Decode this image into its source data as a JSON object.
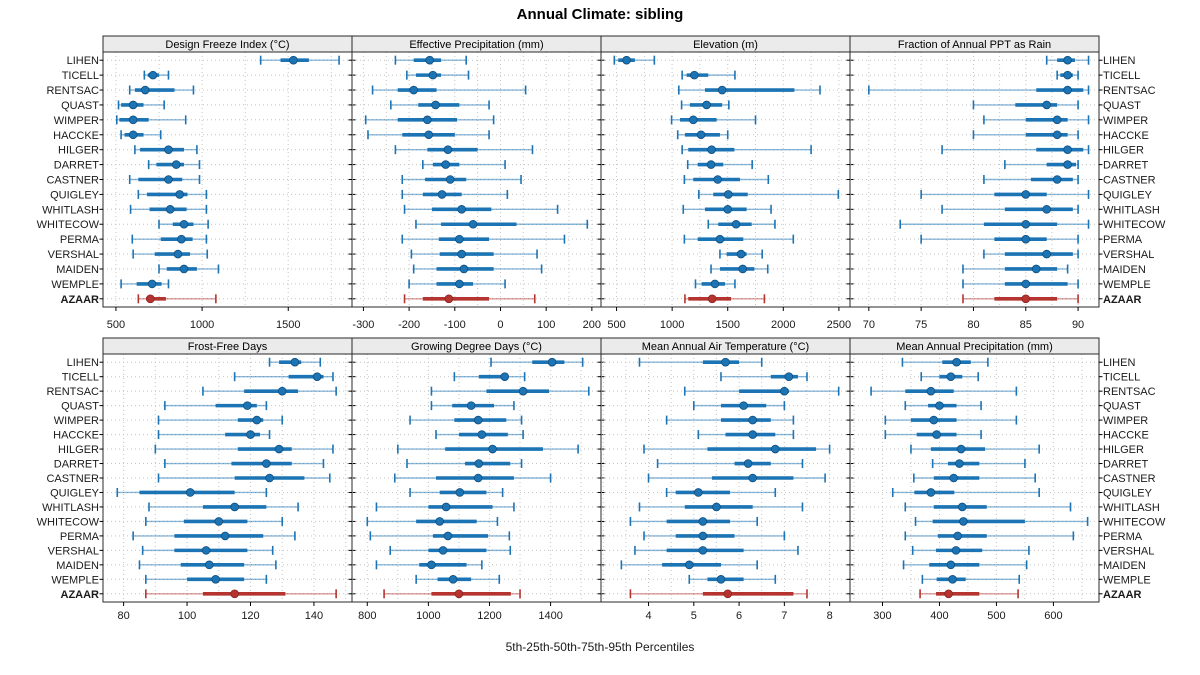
{
  "title": "Annual Climate: sibling",
  "caption": "5th-25th-50th-75th-95th Percentiles",
  "stations": [
    "LIHEN",
    "TICELL",
    "RENTSAC",
    "QUAST",
    "WIMPER",
    "HACCKE",
    "HILGER",
    "DARRET",
    "CASTNER",
    "QUIGLEY",
    "WHITLASH",
    "WHITECOW",
    "PERMA",
    "VERSHAL",
    "MAIDEN",
    "WEMPLE",
    "AZAAR"
  ],
  "highlight_station": "AZAAR",
  "colors": {
    "series": "#1c74b4",
    "series_dot_edge": "#0f4d7d",
    "highlight": "#b5342f",
    "highlight_dot_edge": "#8c2420",
    "strip_bg": "#ebebeb",
    "panel_border": "#2a2a2a",
    "grid": "#c4c4c4",
    "text": "#1a1a1a"
  },
  "chart_data": {
    "type": "dotplot-trellis",
    "percentiles": [
      "5th",
      "25th",
      "50th",
      "75th",
      "95th"
    ],
    "layout": {
      "rows": 2,
      "cols": 4
    },
    "panels": [
      {
        "title": "Design Freeze Index (°C)",
        "ticks": [
          500,
          1000,
          1500
        ],
        "xlim": [
          425,
          1870
        ],
        "values": [
          [
            1340,
            1455,
            1530,
            1620,
            1795
          ],
          [
            665,
            685,
            715,
            750,
            805
          ],
          [
            580,
            610,
            670,
            840,
            950
          ],
          [
            515,
            530,
            600,
            660,
            780
          ],
          [
            505,
            520,
            600,
            690,
            905
          ],
          [
            530,
            550,
            600,
            660,
            760
          ],
          [
            610,
            640,
            805,
            895,
            970
          ],
          [
            690,
            735,
            850,
            895,
            985
          ],
          [
            580,
            630,
            805,
            885,
            985
          ],
          [
            630,
            680,
            870,
            915,
            1025
          ],
          [
            585,
            695,
            815,
            910,
            1025
          ],
          [
            750,
            830,
            895,
            950,
            1035
          ],
          [
            595,
            760,
            880,
            945,
            1025
          ],
          [
            600,
            725,
            860,
            930,
            1030
          ],
          [
            750,
            795,
            895,
            970,
            1095
          ],
          [
            530,
            620,
            710,
            765,
            805
          ],
          [
            630,
            675,
            700,
            790,
            1080
          ]
        ]
      },
      {
        "title": "Effective Precipitation (mm)",
        "ticks": [
          -300,
          -200,
          -100,
          0,
          100,
          200
        ],
        "xlim": [
          -325,
          220
        ],
        "values": [
          [
            -230,
            -190,
            -155,
            -130,
            -75
          ],
          [
            -205,
            -185,
            -148,
            -130,
            -70
          ],
          [
            -280,
            -225,
            -190,
            -140,
            55
          ],
          [
            -240,
            -180,
            -142,
            -90,
            -25
          ],
          [
            -295,
            -225,
            -160,
            -95,
            -15
          ],
          [
            -290,
            -215,
            -157,
            -100,
            -25
          ],
          [
            -230,
            -160,
            -115,
            -50,
            70
          ],
          [
            -170,
            -148,
            -120,
            -90,
            10
          ],
          [
            -215,
            -165,
            -110,
            -75,
            45
          ],
          [
            -215,
            -170,
            -128,
            -85,
            15
          ],
          [
            -210,
            -150,
            -85,
            -20,
            125
          ],
          [
            -185,
            -130,
            -60,
            35,
            190
          ],
          [
            -215,
            -135,
            -90,
            -25,
            140
          ],
          [
            -195,
            -133,
            -85,
            -15,
            80
          ],
          [
            -190,
            -140,
            -80,
            -15,
            90
          ],
          [
            -200,
            -140,
            -90,
            -60,
            10
          ],
          [
            -210,
            -170,
            -113,
            -25,
            75
          ]
        ]
      },
      {
        "title": "Elevation (m)",
        "ticks": [
          500,
          1000,
          1500,
          2000,
          2500
        ],
        "xlim": [
          360,
          2600
        ],
        "values": [
          [
            480,
            515,
            590,
            665,
            840
          ],
          [
            1090,
            1130,
            1200,
            1325,
            1565
          ],
          [
            1060,
            1295,
            1450,
            2100,
            2330
          ],
          [
            1085,
            1160,
            1310,
            1450,
            1510
          ],
          [
            995,
            1070,
            1190,
            1400,
            1750
          ],
          [
            1050,
            1115,
            1260,
            1430,
            1500
          ],
          [
            1090,
            1145,
            1355,
            1560,
            2250
          ],
          [
            1140,
            1230,
            1350,
            1460,
            1720
          ],
          [
            1110,
            1190,
            1410,
            1610,
            1865
          ],
          [
            1240,
            1370,
            1505,
            1680,
            2495
          ],
          [
            1100,
            1295,
            1500,
            1670,
            1890
          ],
          [
            1325,
            1415,
            1575,
            1715,
            1925
          ],
          [
            1110,
            1230,
            1430,
            1640,
            2090
          ],
          [
            1430,
            1490,
            1620,
            1670,
            1810
          ],
          [
            1350,
            1430,
            1635,
            1740,
            1860
          ],
          [
            1210,
            1265,
            1385,
            1475,
            1565
          ],
          [
            1115,
            1145,
            1360,
            1530,
            1830
          ]
        ]
      },
      {
        "title": "Fraction of Annual PPT as Rain",
        "ticks": [
          70,
          75,
          80,
          85,
          90
        ],
        "xlim": [
          68.2,
          92
        ],
        "values": [
          [
            87,
            88,
            89,
            89.7,
            91
          ],
          [
            88,
            88.3,
            89,
            89.5,
            90
          ],
          [
            70,
            86,
            89,
            90.5,
            91
          ],
          [
            80,
            84,
            87,
            88,
            90
          ],
          [
            81,
            85,
            88,
            89,
            91
          ],
          [
            80,
            85,
            88,
            89,
            90
          ],
          [
            77,
            86,
            89,
            90.5,
            91
          ],
          [
            83,
            87,
            89,
            89.8,
            90
          ],
          [
            81,
            85.5,
            88,
            89.5,
            90
          ],
          [
            75,
            82,
            85,
            87,
            91
          ],
          [
            77,
            83,
            87,
            89.5,
            90
          ],
          [
            73,
            81,
            85,
            88,
            91
          ],
          [
            75,
            82,
            85,
            87,
            90
          ],
          [
            81,
            83,
            87,
            89.5,
            90
          ],
          [
            79,
            83,
            86,
            88,
            89
          ],
          [
            79,
            83,
            85,
            89,
            90
          ],
          [
            79,
            82,
            85,
            88,
            90
          ]
        ]
      },
      {
        "title": "Frost-Free Days",
        "ticks": [
          80,
          100,
          120,
          140
        ],
        "xlim": [
          73.5,
          152
        ],
        "values": [
          [
            126,
            129,
            134,
            136,
            142
          ],
          [
            115,
            132,
            141,
            143,
            146
          ],
          [
            105,
            118,
            130,
            135,
            147
          ],
          [
            93,
            109,
            119,
            122,
            125
          ],
          [
            91,
            116,
            122,
            124,
            130
          ],
          [
            91,
            112,
            120,
            123,
            126
          ],
          [
            90,
            116,
            129,
            133,
            146
          ],
          [
            93,
            114,
            125,
            133,
            143
          ],
          [
            91,
            115,
            126,
            137,
            145
          ],
          [
            78,
            85,
            101,
            115,
            125
          ],
          [
            88,
            105,
            115,
            125,
            135
          ],
          [
            87,
            99,
            110,
            119,
            130
          ],
          [
            83,
            96,
            112,
            124,
            134
          ],
          [
            86,
            96,
            106,
            119,
            127
          ],
          [
            85,
            98,
            107,
            118,
            128
          ],
          [
            87,
            100,
            109,
            118,
            125
          ],
          [
            87,
            105,
            115,
            131,
            147
          ]
        ]
      },
      {
        "title": "Growing Degree Days (°C)",
        "ticks": [
          800,
          1000,
          1200,
          1400
        ],
        "xlim": [
          750,
          1565
        ],
        "values": [
          [
            1205,
            1340,
            1405,
            1445,
            1505
          ],
          [
            1085,
            1165,
            1250,
            1262,
            1315
          ],
          [
            1010,
            1190,
            1310,
            1395,
            1525
          ],
          [
            1010,
            1078,
            1140,
            1215,
            1280
          ],
          [
            940,
            1085,
            1163,
            1255,
            1305
          ],
          [
            1025,
            1100,
            1175,
            1260,
            1310
          ],
          [
            900,
            1055,
            1210,
            1375,
            1490
          ],
          [
            930,
            1120,
            1165,
            1268,
            1305
          ],
          [
            890,
            1025,
            1163,
            1280,
            1400
          ],
          [
            940,
            1037,
            1103,
            1190,
            1243
          ],
          [
            830,
            1000,
            1058,
            1210,
            1280
          ],
          [
            800,
            960,
            1037,
            1158,
            1226
          ],
          [
            810,
            1015,
            1064,
            1195,
            1265
          ],
          [
            875,
            1000,
            1048,
            1190,
            1268
          ],
          [
            830,
            970,
            1010,
            1125,
            1175
          ],
          [
            960,
            1030,
            1081,
            1140,
            1232
          ],
          [
            855,
            1010,
            1100,
            1270,
            1300
          ]
        ]
      },
      {
        "title": "Mean Annual Air Temperature (°C)",
        "ticks": [
          4,
          5,
          6,
          7,
          8
        ],
        "xlim": [
          2.95,
          8.45
        ],
        "values": [
          [
            3.8,
            5.2,
            5.7,
            6.0,
            6.5
          ],
          [
            5.6,
            6.7,
            7.1,
            7.3,
            7.5
          ],
          [
            4.8,
            6.0,
            7.0,
            7.1,
            8.2
          ],
          [
            5.0,
            5.6,
            6.1,
            6.6,
            7.0
          ],
          [
            4.4,
            5.6,
            6.3,
            6.7,
            7.2
          ],
          [
            5.1,
            5.7,
            6.3,
            6.8,
            7.2
          ],
          [
            3.9,
            5.3,
            6.8,
            7.7,
            8.0
          ],
          [
            4.2,
            5.9,
            6.2,
            6.7,
            7.4
          ],
          [
            4.0,
            5.4,
            6.3,
            7.2,
            7.9
          ],
          [
            4.4,
            4.6,
            5.1,
            5.8,
            6.8
          ],
          [
            3.8,
            4.8,
            5.5,
            6.3,
            7.4
          ],
          [
            3.6,
            4.4,
            5.2,
            5.8,
            6.4
          ],
          [
            3.9,
            4.6,
            5.2,
            5.9,
            7.0
          ],
          [
            3.7,
            4.4,
            5.2,
            6.1,
            7.3
          ],
          [
            3.4,
            4.3,
            4.9,
            5.6,
            6.4
          ],
          [
            4.9,
            5.3,
            5.6,
            6.1,
            6.8
          ],
          [
            3.6,
            5.2,
            5.75,
            7.2,
            7.5
          ]
        ]
      },
      {
        "title": "Mean Annual Precipitation (mm)",
        "ticks": [
          300,
          400,
          500,
          600
        ],
        "xlim": [
          243,
          680
        ],
        "values": [
          [
            335,
            405,
            430,
            455,
            485
          ],
          [
            368,
            400,
            420,
            440,
            468
          ],
          [
            280,
            340,
            385,
            425,
            535
          ],
          [
            340,
            380,
            400,
            430,
            473
          ],
          [
            305,
            350,
            390,
            430,
            535
          ],
          [
            305,
            360,
            395,
            430,
            473
          ],
          [
            350,
            385,
            438,
            480,
            575
          ],
          [
            388,
            415,
            435,
            470,
            550
          ],
          [
            355,
            390,
            425,
            470,
            568
          ],
          [
            318,
            356,
            385,
            426,
            575
          ],
          [
            340,
            390,
            440,
            483,
            630
          ],
          [
            358,
            388,
            442,
            550,
            660
          ],
          [
            340,
            397,
            432,
            483,
            635
          ],
          [
            353,
            394,
            429,
            475,
            557
          ],
          [
            337,
            382,
            420,
            470,
            553
          ],
          [
            370,
            395,
            423,
            446,
            540
          ],
          [
            366,
            394,
            416,
            470,
            538
          ]
        ]
      }
    ]
  }
}
